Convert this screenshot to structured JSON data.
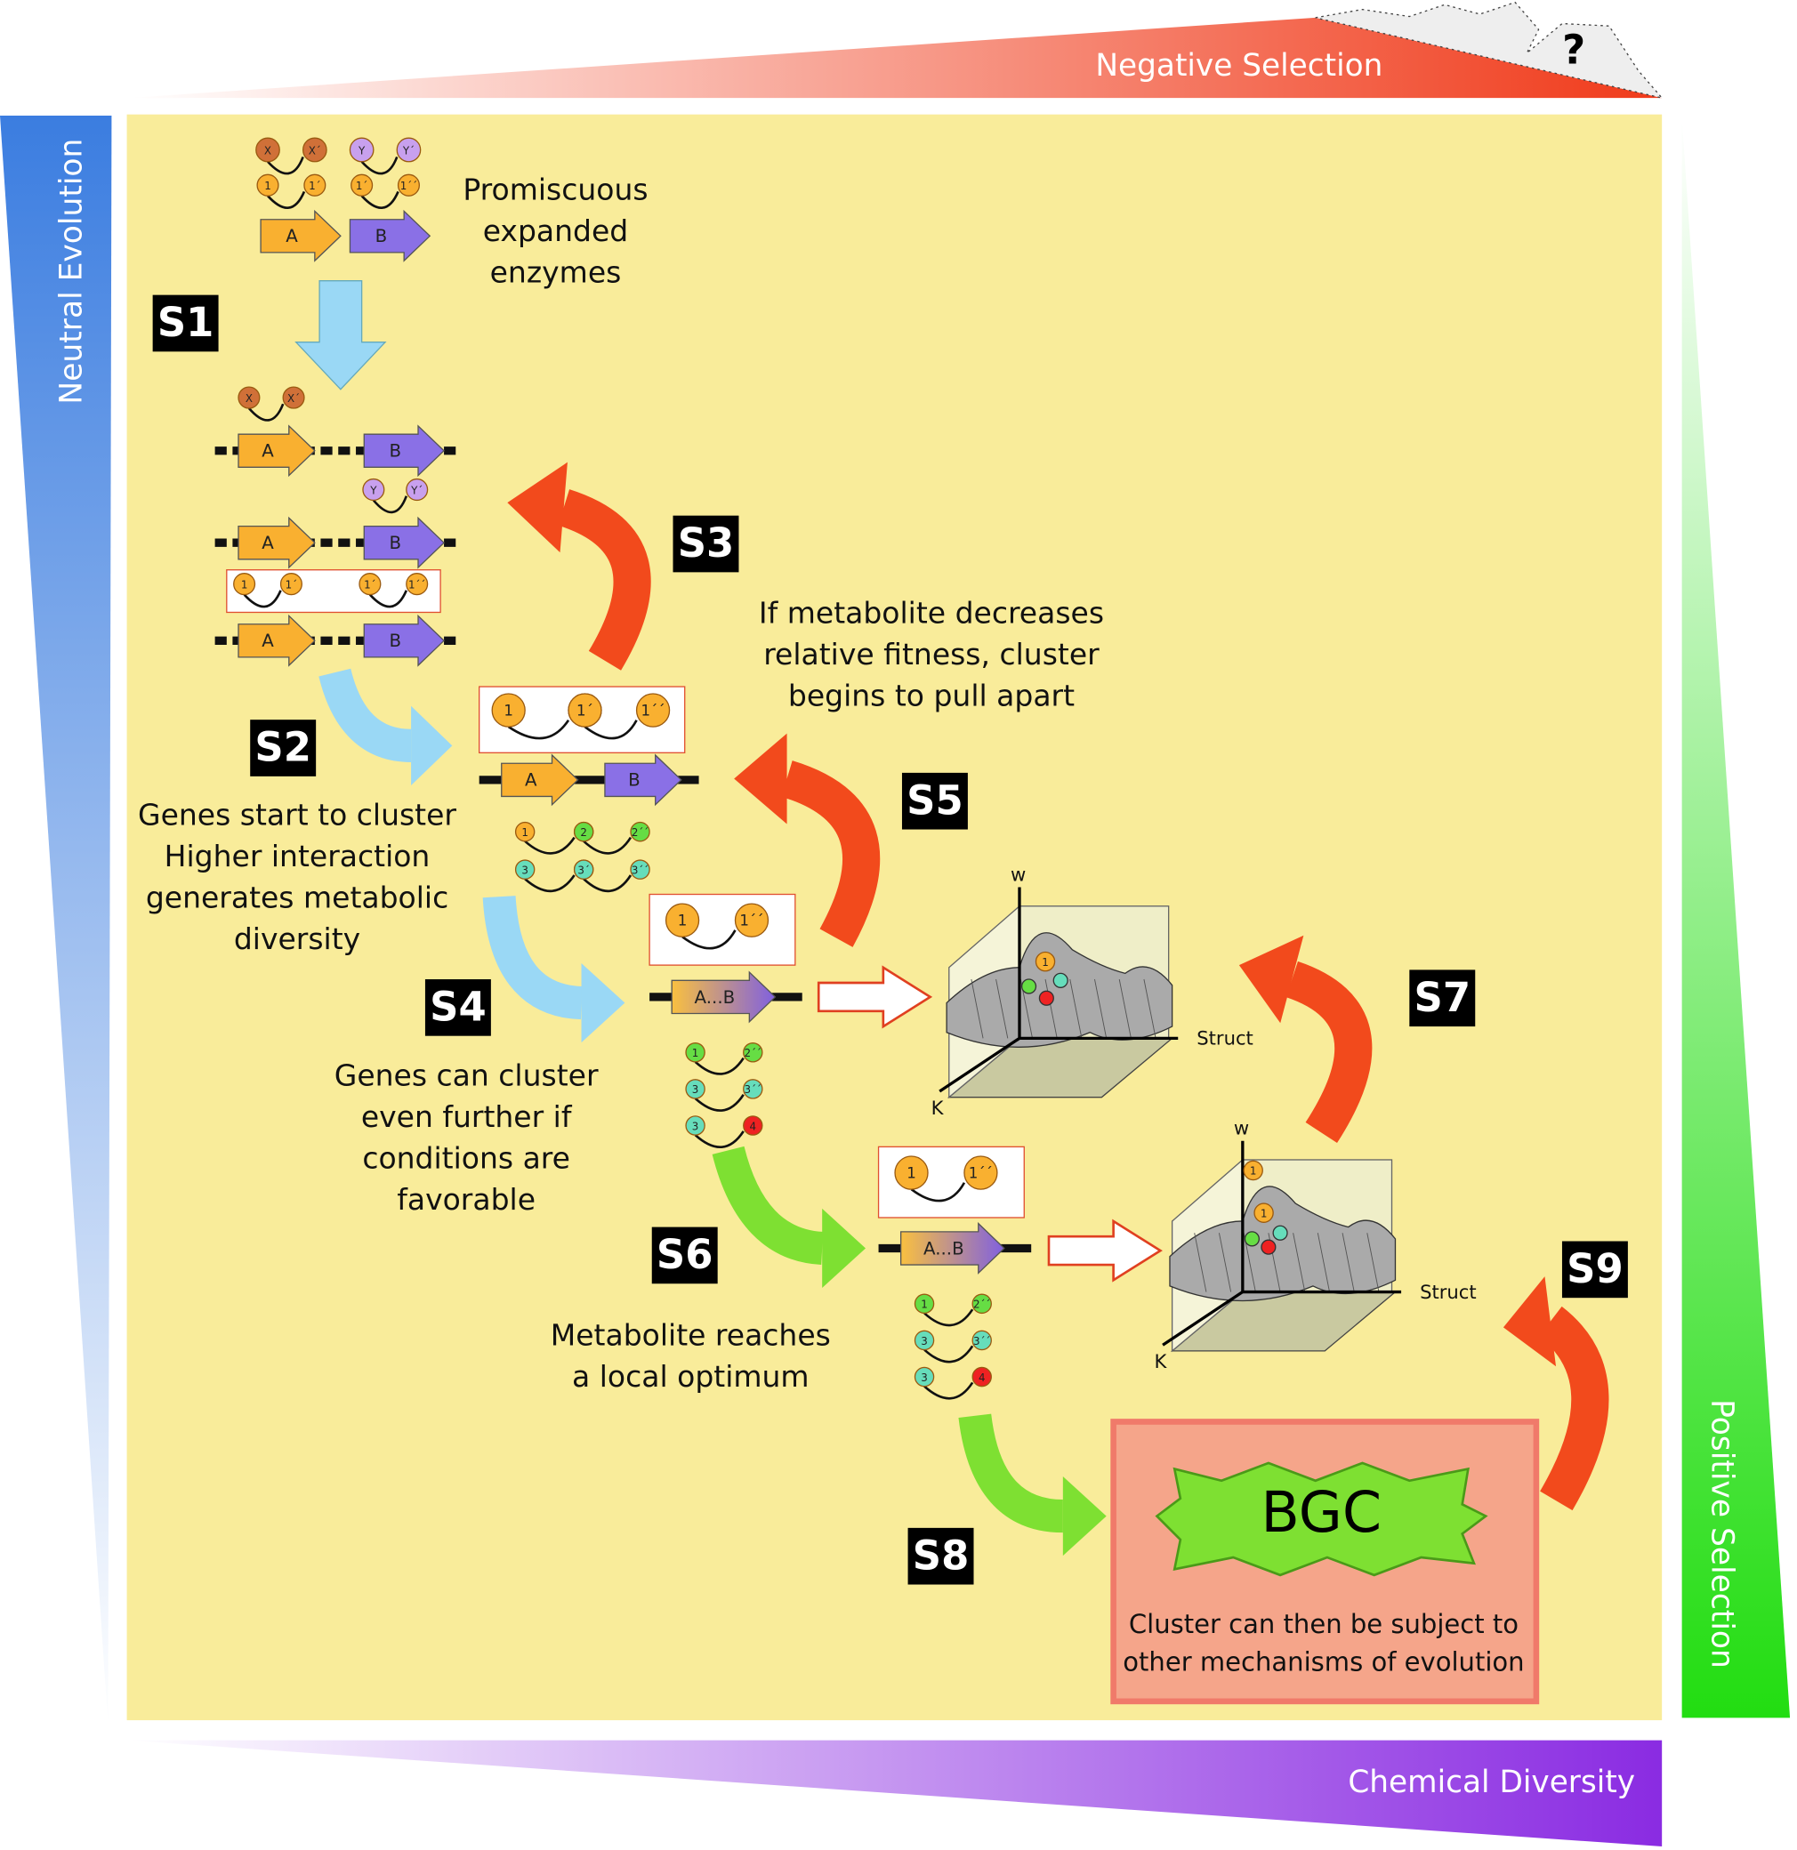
{
  "axes": {
    "top": "Negative Selection",
    "question": "?",
    "left": "Neutral Evolution",
    "right": "Positive Selection",
    "bottom": "Chemical Diversity"
  },
  "steps": [
    "S1",
    "S2",
    "S3",
    "S4",
    "S5",
    "S6",
    "S7",
    "S8",
    "S9"
  ],
  "captions": {
    "s1": [
      "Promiscuous",
      "expanded",
      "enzymes"
    ],
    "s2": [
      "Genes start to cluster",
      "Higher interaction",
      "generates metabolic",
      "diversity"
    ],
    "s4": [
      "Genes can cluster",
      "even further if",
      "conditions are",
      "favorable"
    ],
    "s5": [
      "If metabolite decreases",
      "relative fitness, cluster",
      "begins to pull apart"
    ],
    "s6": [
      "Metabolite reaches",
      "a local optimum"
    ],
    "bgc": [
      "Cluster can then be subject to",
      "other mechanisms of evolution"
    ]
  },
  "bgc": "BGC",
  "labels": {
    "A": "A",
    "B": "B",
    "AB": "A...B",
    "X": "X",
    "Xp": "X´",
    "Y": "Y",
    "Yp": "Y´",
    "m1": "1",
    "m1p": "1´",
    "m1pp": "1´´",
    "m2": "2",
    "m2pp": "2´´",
    "m3": "3",
    "m3p": "3´",
    "m3pp": "3´´",
    "m4": "4",
    "w": "w",
    "K": "K",
    "struct": "Struct"
  }
}
